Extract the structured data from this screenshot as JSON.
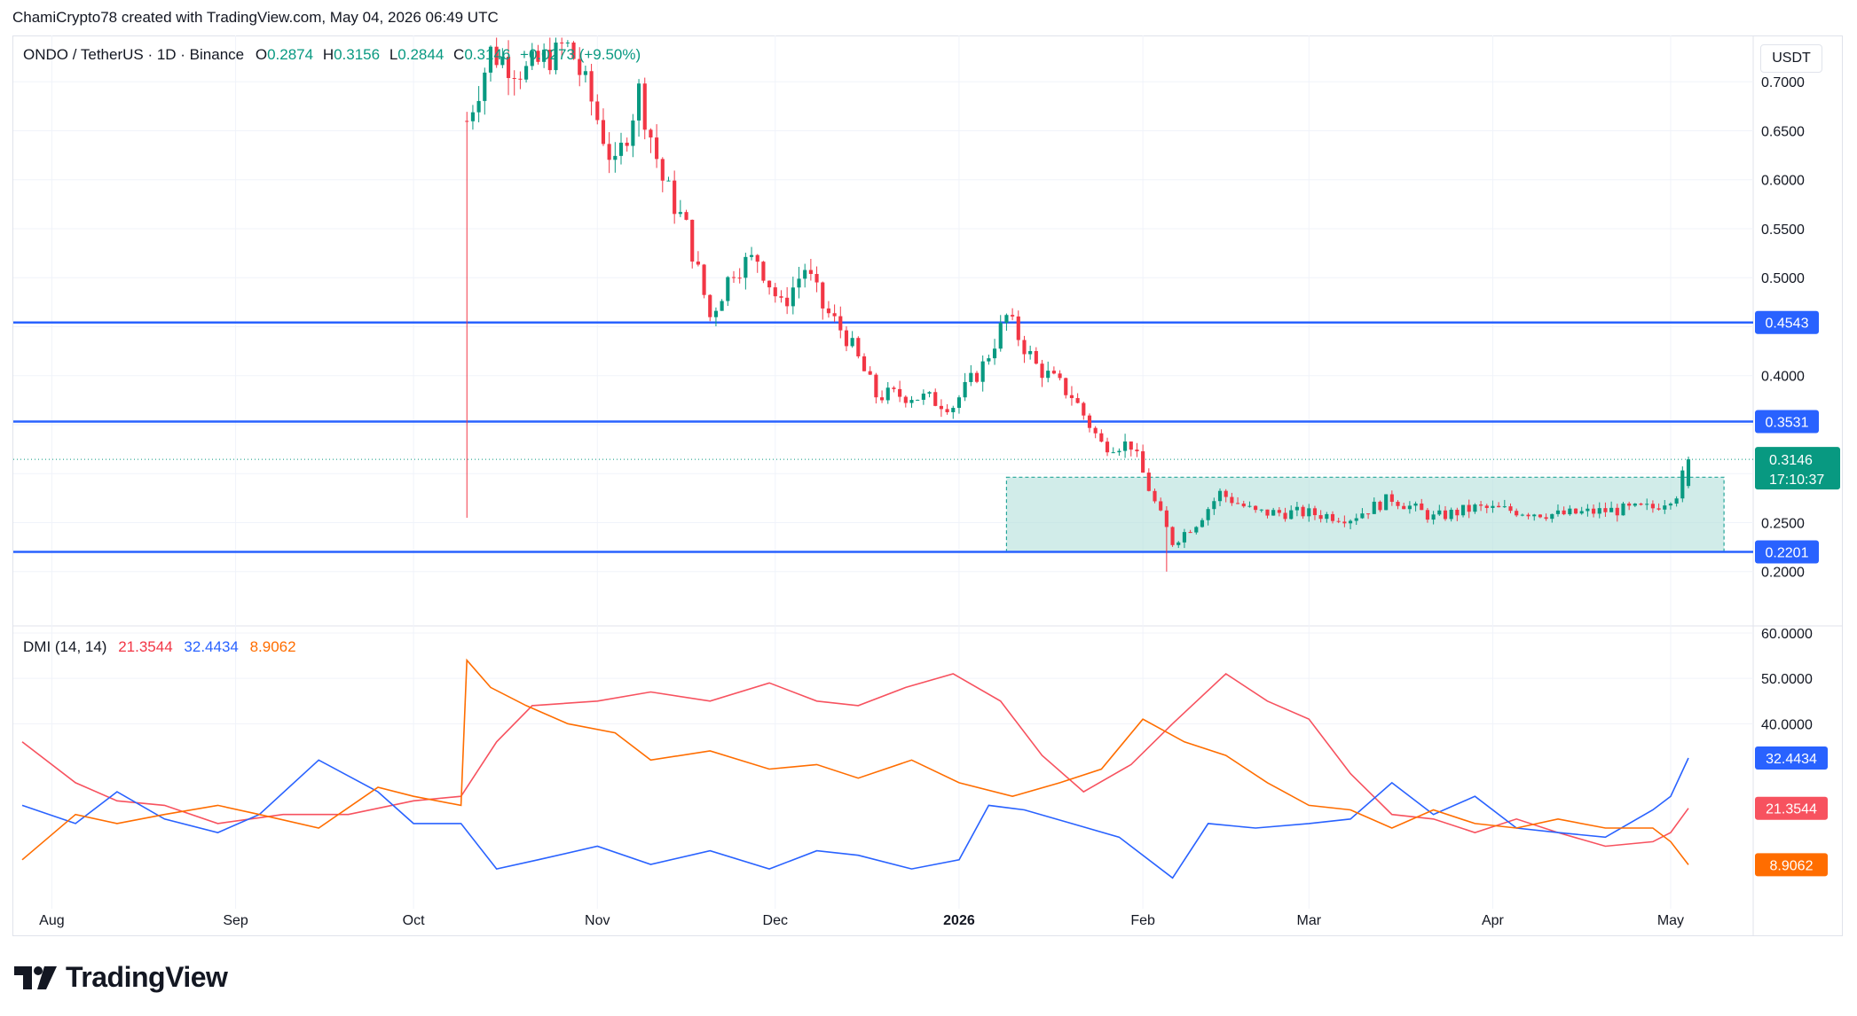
{
  "attribution": "ChamiCrypto78 created with TradingView.com, May 04, 2026 06:49 UTC",
  "brand": {
    "name": "TradingView",
    "logo_icon": "tradingview-logo-icon"
  },
  "colors": {
    "up": "#089981",
    "down": "#f23645",
    "level": "#2962ff",
    "zone_fill": "#b2dfdb",
    "zone_border": "#26a69a",
    "dmi_plus": "#2962ff",
    "dmi_minus": "#f7525f",
    "adx": "#ff6d00"
  },
  "legend": {
    "symbol": "ONDO / TetherUS · 1D · Binance",
    "o_label": "O",
    "o_value": "0.2874",
    "h_label": "H",
    "h_value": "0.3156",
    "l_label": "L",
    "l_value": "0.2844",
    "c_label": "C",
    "c_value": "0.3146",
    "change": "+0.0273 (+9.50%)"
  },
  "dmi_legend": {
    "title": "DMI (14, 14)",
    "minus": "21.3544",
    "plus": "32.4434",
    "adx": "8.9062"
  },
  "chart_data": [
    {
      "type": "candlestick",
      "title": "ONDO / TetherUS · 1D · Binance",
      "unit": "USDT",
      "ylim": [
        0.15,
        0.74
      ],
      "x_ticks": [
        "Aug",
        "Sep",
        "Oct",
        "Nov",
        "Dec",
        "2026",
        "Feb",
        "Mar",
        "Apr",
        "May"
      ],
      "y_ticks": [
        "0.2000",
        "0.2500",
        "0.3000",
        "0.3500",
        "0.4000",
        "0.4500",
        "0.5000",
        "0.5500",
        "0.6000",
        "0.6500",
        "0.7000"
      ],
      "horizontal_levels": [
        {
          "value": 0.4543,
          "label": "0.4543"
        },
        {
          "value": 0.3531,
          "label": "0.3531"
        },
        {
          "value": 0.2201,
          "label": "0.2201"
        }
      ],
      "range_zone": {
        "from": "2026-01-09",
        "to": "2026-05-10",
        "low": 0.2201,
        "high": 0.2963
      },
      "last_price": {
        "value": 0.3146,
        "label": "0.3146",
        "countdown": "17:10:37"
      },
      "close_path": [
        [
          "2025-10-10",
          0.66
        ],
        [
          "2025-10-14",
          0.73
        ],
        [
          "2025-10-20",
          0.71
        ],
        [
          "2025-10-27",
          0.74
        ],
        [
          "2025-10-31",
          0.68
        ],
        [
          "2025-11-04",
          0.61
        ],
        [
          "2025-11-08",
          0.69
        ],
        [
          "2025-11-12",
          0.6
        ],
        [
          "2025-11-16",
          0.55
        ],
        [
          "2025-11-20",
          0.46
        ],
        [
          "2025-11-24",
          0.51
        ],
        [
          "2025-11-28",
          0.52
        ],
        [
          "2025-12-02",
          0.47
        ],
        [
          "2025-12-06",
          0.51
        ],
        [
          "2025-12-09",
          0.47
        ],
        [
          "2025-12-13",
          0.44
        ],
        [
          "2025-12-18",
          0.38
        ],
        [
          "2025-12-24",
          0.38
        ],
        [
          "2025-12-31",
          0.37
        ],
        [
          "2026-01-05",
          0.41
        ],
        [
          "2026-01-09",
          0.46
        ],
        [
          "2026-01-14",
          0.41
        ],
        [
          "2026-01-20",
          0.38
        ],
        [
          "2026-01-25",
          0.33
        ],
        [
          "2026-01-30",
          0.33
        ],
        [
          "2026-02-03",
          0.27
        ],
        [
          "2026-02-06",
          0.23
        ],
        [
          "2026-02-10",
          0.25
        ],
        [
          "2026-02-14",
          0.28
        ],
        [
          "2026-02-20",
          0.26
        ],
        [
          "2026-02-28",
          0.26
        ],
        [
          "2026-03-08",
          0.255
        ],
        [
          "2026-03-15",
          0.275
        ],
        [
          "2026-03-22",
          0.255
        ],
        [
          "2026-03-29",
          0.265
        ],
        [
          "2026-04-05",
          0.262
        ],
        [
          "2026-04-12",
          0.258
        ],
        [
          "2026-04-20",
          0.262
        ],
        [
          "2026-04-28",
          0.265
        ],
        [
          "2026-05-02",
          0.28
        ],
        [
          "2026-05-04",
          0.3146
        ]
      ]
    },
    {
      "type": "line",
      "title": "DMI (14, 14)",
      "ylim": [
        0,
        60
      ],
      "y_ticks": [
        "40.0000",
        "50.0000",
        "60.0000"
      ],
      "series": [
        {
          "name": "21.3544",
          "color_key": "dmi_minus",
          "last": 21.3544,
          "points": [
            [
              "2025-07-27",
              36
            ],
            [
              "2025-08-05",
              27
            ],
            [
              "2025-08-12",
              23
            ],
            [
              "2025-08-20",
              22
            ],
            [
              "2025-08-29",
              18
            ],
            [
              "2025-09-09",
              20
            ],
            [
              "2025-09-20",
              20
            ],
            [
              "2025-10-01",
              23
            ],
            [
              "2025-10-09",
              24
            ],
            [
              "2025-10-15",
              36
            ],
            [
              "2025-10-21",
              44
            ],
            [
              "2025-11-01",
              45
            ],
            [
              "2025-11-10",
              47
            ],
            [
              "2025-11-20",
              45
            ],
            [
              "2025-11-30",
              49
            ],
            [
              "2025-12-08",
              45
            ],
            [
              "2025-12-15",
              44
            ],
            [
              "2025-12-23",
              48
            ],
            [
              "2025-12-31",
              51
            ],
            [
              "2026-01-08",
              45
            ],
            [
              "2026-01-15",
              33
            ],
            [
              "2026-01-22",
              25
            ],
            [
              "2026-01-30",
              31
            ],
            [
              "2026-02-06",
              40
            ],
            [
              "2026-02-15",
              51
            ],
            [
              "2026-02-22",
              45
            ],
            [
              "2026-03-01",
              41
            ],
            [
              "2026-03-08",
              29
            ],
            [
              "2026-03-15",
              20
            ],
            [
              "2026-03-22",
              19
            ],
            [
              "2026-03-29",
              16
            ],
            [
              "2026-04-05",
              19
            ],
            [
              "2026-04-12",
              16
            ],
            [
              "2026-04-20",
              13
            ],
            [
              "2026-04-28",
              14
            ],
            [
              "2026-05-01",
              16
            ],
            [
              "2026-05-04",
              21.3544
            ]
          ]
        },
        {
          "name": "32.4434",
          "color_key": "dmi_plus",
          "last": 32.4434,
          "points": [
            [
              "2025-07-27",
              22
            ],
            [
              "2025-08-05",
              18
            ],
            [
              "2025-08-12",
              25
            ],
            [
              "2025-08-20",
              19
            ],
            [
              "2025-08-29",
              16
            ],
            [
              "2025-09-05",
              20
            ],
            [
              "2025-09-15",
              32
            ],
            [
              "2025-09-25",
              25
            ],
            [
              "2025-10-01",
              18
            ],
            [
              "2025-10-09",
              18
            ],
            [
              "2025-10-15",
              8
            ],
            [
              "2025-10-22",
              10
            ],
            [
              "2025-11-01",
              13
            ],
            [
              "2025-11-10",
              9
            ],
            [
              "2025-11-20",
              12
            ],
            [
              "2025-11-30",
              8
            ],
            [
              "2025-12-08",
              12
            ],
            [
              "2025-12-15",
              11
            ],
            [
              "2025-12-24",
              8
            ],
            [
              "2026-01-01",
              10
            ],
            [
              "2026-01-06",
              22
            ],
            [
              "2026-01-12",
              21
            ],
            [
              "2026-01-20",
              18
            ],
            [
              "2026-01-28",
              15
            ],
            [
              "2026-02-06",
              6
            ],
            [
              "2026-02-12",
              18
            ],
            [
              "2026-02-20",
              17
            ],
            [
              "2026-03-01",
              18
            ],
            [
              "2026-03-08",
              19
            ],
            [
              "2026-03-15",
              27
            ],
            [
              "2026-03-22",
              20
            ],
            [
              "2026-03-29",
              24
            ],
            [
              "2026-04-05",
              17
            ],
            [
              "2026-04-12",
              16
            ],
            [
              "2026-04-20",
              15
            ],
            [
              "2026-04-28",
              21
            ],
            [
              "2026-05-01",
              24
            ],
            [
              "2026-05-04",
              32.4434
            ]
          ]
        },
        {
          "name": "8.9062",
          "color_key": "adx",
          "last": 8.9062,
          "points": [
            [
              "2025-07-27",
              10
            ],
            [
              "2025-08-05",
              20
            ],
            [
              "2025-08-12",
              18
            ],
            [
              "2025-08-20",
              20
            ],
            [
              "2025-08-29",
              22
            ],
            [
              "2025-09-05",
              20
            ],
            [
              "2025-09-15",
              17
            ],
            [
              "2025-09-25",
              26
            ],
            [
              "2025-10-01",
              24
            ],
            [
              "2025-10-09",
              22
            ],
            [
              "2025-10-10",
              54
            ],
            [
              "2025-10-14",
              48
            ],
            [
              "2025-10-20",
              44
            ],
            [
              "2025-10-27",
              40
            ],
            [
              "2025-11-04",
              38
            ],
            [
              "2025-11-10",
              32
            ],
            [
              "2025-11-20",
              34
            ],
            [
              "2025-11-30",
              30
            ],
            [
              "2025-12-08",
              31
            ],
            [
              "2025-12-15",
              28
            ],
            [
              "2025-12-24",
              32
            ],
            [
              "2026-01-01",
              27
            ],
            [
              "2026-01-10",
              24
            ],
            [
              "2026-01-18",
              27
            ],
            [
              "2026-01-25",
              30
            ],
            [
              "2026-02-01",
              41
            ],
            [
              "2026-02-08",
              36
            ],
            [
              "2026-02-15",
              33
            ],
            [
              "2026-02-22",
              27
            ],
            [
              "2026-03-01",
              22
            ],
            [
              "2026-03-08",
              21
            ],
            [
              "2026-03-15",
              17
            ],
            [
              "2026-03-22",
              21
            ],
            [
              "2026-03-29",
              18
            ],
            [
              "2026-04-05",
              17
            ],
            [
              "2026-04-12",
              19
            ],
            [
              "2026-04-20",
              17
            ],
            [
              "2026-04-28",
              17
            ],
            [
              "2026-05-01",
              14
            ],
            [
              "2026-05-04",
              8.9062
            ]
          ]
        }
      ]
    }
  ]
}
